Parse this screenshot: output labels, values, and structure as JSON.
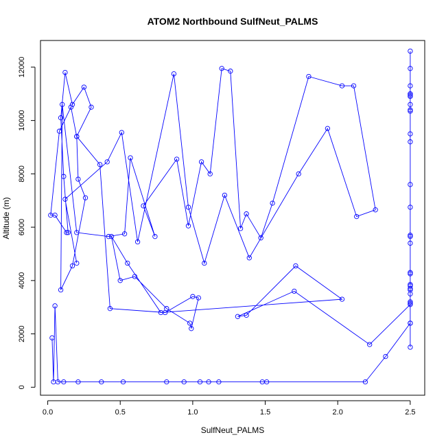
{
  "chart_data": {
    "type": "line",
    "title": "ATOM2 Northbound SulfNeut_PALMS",
    "xlabel": "SulfNeut_PALMS",
    "ylabel": "Altitude (m)",
    "xlim": [
      -0.05,
      2.6
    ],
    "ylim": [
      -300,
      13000
    ],
    "xticks": [
      0.0,
      0.5,
      1.0,
      1.5,
      2.0,
      2.5
    ],
    "xtick_labels": [
      "0.0",
      "0.5",
      "1.0",
      "1.5",
      "2.0",
      "2.5"
    ],
    "yticks": [
      0,
      2000,
      4000,
      6000,
      8000,
      10000,
      12000
    ],
    "ytick_labels": [
      "0",
      "2000",
      "4000",
      "6000",
      "8000",
      "10000",
      "12000"
    ],
    "grid": false,
    "line_color": "#0000ff",
    "marker": "open-circle",
    "series": [
      {
        "x": [
          0.03,
          0.04,
          0.05,
          0.07,
          0.11,
          0.21,
          0.37,
          0.52,
          0.82,
          0.94,
          1.05,
          1.11,
          1.18,
          1.48,
          1.51,
          2.19,
          2.33,
          2.5,
          2.5,
          2.5,
          2.5,
          2.5,
          2.5,
          2.5,
          2.5,
          2.5,
          2.5,
          2.5,
          2.5,
          2.5,
          2.5,
          2.5,
          2.5,
          2.5,
          2.5,
          2.5,
          2.5,
          2.5,
          2.5,
          2.5,
          2.5,
          2.5,
          2.5,
          2.5,
          2.5,
          2.5,
          2.22,
          1.7,
          1.31,
          1.37,
          1.71,
          2.03,
          0.78,
          0.55,
          0.44,
          0.5,
          0.6,
          0.82,
          0.98,
          0.99,
          1.04,
          1.0,
          0.81,
          0.43,
          0.36,
          0.2,
          0.16,
          0.08,
          0.02,
          0.05,
          0.13,
          0.14,
          0.11,
          0.09,
          0.12,
          0.17,
          0.25,
          0.3,
          0.2,
          0.21,
          0.26,
          0.17,
          0.09,
          0.1,
          0.2,
          0.42,
          0.53,
          0.57,
          0.74,
          0.66,
          0.89,
          0.97,
          1.06,
          1.12,
          1.2,
          1.26,
          1.33,
          1.37,
          1.47,
          1.55,
          1.8,
          2.03,
          2.11,
          2.26,
          2.13,
          1.93,
          1.73,
          1.39,
          1.22,
          1.08,
          0.97,
          0.87,
          0.62,
          0.51,
          0.41,
          0.12,
          0.2
        ],
        "y": [
          1850,
          200,
          3050,
          200,
          200,
          200,
          200,
          200,
          200,
          200,
          200,
          200,
          200,
          200,
          200,
          200,
          1150,
          2400,
          3150,
          3500,
          3700,
          3800,
          4300,
          5400,
          5700,
          6750,
          7600,
          9200,
          9500,
          10400,
          10600,
          11000,
          11300,
          11950,
          12600,
          10950,
          10900,
          10350,
          5650,
          4250,
          3850,
          3650,
          3200,
          2400,
          1500,
          3100,
          1600,
          3600,
          2650,
          2700,
          4550,
          3300,
          2800,
          4650,
          5650,
          4000,
          4150,
          2950,
          2400,
          2200,
          3350,
          3400,
          2800,
          2950,
          8350,
          9400,
          10500,
          9600,
          6450,
          6450,
          5800,
          5800,
          7900,
          10100,
          11800,
          10600,
          11250,
          10500,
          9400,
          7800,
          7100,
          4550,
          3650,
          10600,
          5800,
          5650,
          5750,
          8600,
          5650,
          6800,
          8550,
          6050,
          8450,
          8000,
          11950,
          11850,
          5950,
          6500,
          5600,
          6900,
          11650,
          11300,
          11300,
          6650,
          6400,
          9700,
          8000,
          4850,
          7200,
          4650,
          6750,
          11750,
          5450,
          9550,
          8450,
          7050,
          4650
        ]
      }
    ]
  }
}
